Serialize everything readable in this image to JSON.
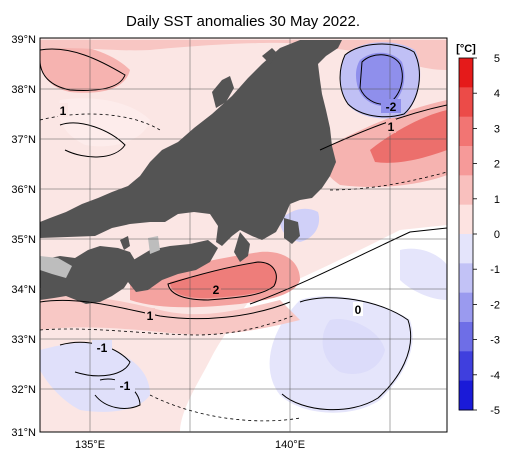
{
  "title": "Daily SST anomalies 30 May 2022.",
  "lat_labels": [
    "39°N",
    "38°N",
    "37°N",
    "36°N",
    "35°N",
    "34°N",
    "33°N",
    "32°N",
    "31°N"
  ],
  "lon_labels": [
    "135°E",
    "140°E"
  ],
  "colorbar": {
    "unit": "[°C]",
    "ticks": [
      "5",
      "4",
      "3",
      "2",
      "1",
      "0",
      "-1",
      "-2",
      "-3",
      "-4",
      "-5"
    ],
    "colors": [
      "#e51a1a",
      "#ec4b48",
      "#f27573",
      "#f69a99",
      "#f9c0be",
      "#fde3e1",
      "#e4e4fb",
      "#c2c2f6",
      "#9a9aef",
      "#6e6ee7",
      "#3f3fde",
      "#1a1ad8"
    ]
  },
  "contour_labels": [
    "1",
    "-2",
    "1",
    "2",
    "1",
    "0",
    "-1",
    "-1"
  ],
  "colors": {
    "land": "#545454",
    "lake": "#bdbdbd",
    "pos1": "#fbe0de",
    "pos2": "#f8c0bd",
    "pos3": "#f39a97",
    "pos4": "#ec6f6c",
    "neg1": "#e2e2fb",
    "neg2": "#bdbdf4",
    "neg3": "#8f8fec"
  }
}
